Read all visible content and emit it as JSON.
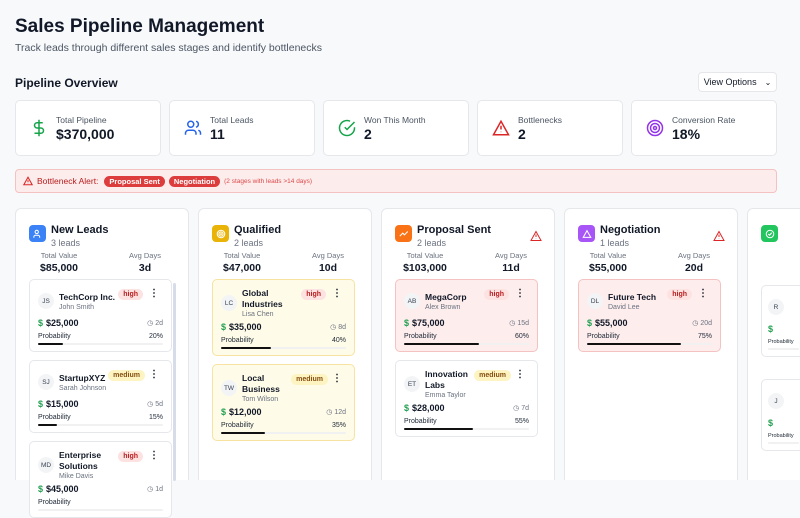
{
  "header": {
    "title": "Sales Pipeline Management",
    "subtitle": "Track leads through different sales stages and identify bottlenecks"
  },
  "overview": {
    "title": "Pipeline Overview",
    "view_options": "View Options"
  },
  "stats": [
    {
      "label": "Total Pipeline",
      "value": "$370,000",
      "icon": "dollar-icon",
      "color": "#16a34a"
    },
    {
      "label": "Total Leads",
      "value": "11",
      "icon": "users-icon",
      "color": "#2563eb"
    },
    {
      "label": "Won This Month",
      "value": "2",
      "icon": "check-circle-icon",
      "color": "#16a34a"
    },
    {
      "label": "Bottlenecks",
      "value": "2",
      "icon": "alert-triangle-icon",
      "color": "#dc2626"
    },
    {
      "label": "Conversion Rate",
      "value": "18%",
      "icon": "target-icon",
      "color": "#9333ea"
    }
  ],
  "alert": {
    "label": "Bottleneck Alert:",
    "stages": [
      "Proposal Sent",
      "Negotiation"
    ],
    "note": "(2 stages with leads >14 days)"
  },
  "labels": {
    "total_value": "Total Value",
    "avg_days": "Avg Days",
    "probability": "Probability"
  },
  "columns": [
    {
      "name": "New Leads",
      "count": "3 leads",
      "total": "$85,000",
      "avg": "3d",
      "color": "#3b82f6",
      "bottleneck": false,
      "leads": [
        {
          "initials": "JS",
          "company": "TechCorp Inc.",
          "contact": "John Smith",
          "priority": "high",
          "value": "$25,000",
          "days": "2d",
          "prob": "20%",
          "p": 20
        },
        {
          "initials": "SJ",
          "company": "StartupXYZ",
          "contact": "Sarah Johnson",
          "priority": "medium",
          "value": "$15,000",
          "days": "5d",
          "prob": "15%",
          "p": 15
        },
        {
          "initials": "MD",
          "company": "Enterprise Solutions",
          "contact": "Mike Davis",
          "priority": "high",
          "value": "$45,000",
          "days": "1d",
          "prob": "",
          "p": 0
        }
      ]
    },
    {
      "name": "Qualified",
      "count": "2 leads",
      "total": "$47,000",
      "avg": "10d",
      "color": "#eab308",
      "bottleneck": false,
      "leads": [
        {
          "initials": "LC",
          "company": "Global Industries",
          "contact": "Lisa Chen",
          "priority": "high",
          "value": "$35,000",
          "days": "8d",
          "prob": "40%",
          "p": 40
        },
        {
          "initials": "TW",
          "company": "Local Business",
          "contact": "Tom Wilson",
          "priority": "medium",
          "value": "$12,000",
          "days": "12d",
          "prob": "35%",
          "p": 35
        }
      ]
    },
    {
      "name": "Proposal Sent",
      "count": "2 leads",
      "total": "$103,000",
      "avg": "11d",
      "color": "#f97316",
      "bottleneck": true,
      "leads": [
        {
          "initials": "AB",
          "company": "MegaCorp",
          "contact": "Alex Brown",
          "priority": "high",
          "value": "$75,000",
          "days": "15d",
          "prob": "60%",
          "p": 60
        },
        {
          "initials": "ET",
          "company": "Innovation Labs",
          "contact": "Emma Taylor",
          "priority": "medium",
          "value": "$28,000",
          "days": "7d",
          "prob": "55%",
          "p": 55
        }
      ]
    },
    {
      "name": "Negotiation",
      "count": "1 leads",
      "total": "$55,000",
      "avg": "20d",
      "color": "#a855f7",
      "bottleneck": true,
      "leads": [
        {
          "initials": "DL",
          "company": "Future Tech",
          "contact": "David Lee",
          "priority": "high",
          "value": "$55,000",
          "days": "20d",
          "prob": "75%",
          "p": 75
        }
      ]
    },
    {
      "name": "",
      "count": "",
      "total": "",
      "avg": "",
      "color": "#22c55e",
      "bottleneck": false,
      "leads": [
        {
          "initials": "R",
          "company": "",
          "contact": "",
          "priority": "",
          "value": "",
          "days": "",
          "prob": "",
          "p": 0
        },
        {
          "initials": "J",
          "company": "",
          "contact": "",
          "priority": "",
          "value": "",
          "days": "",
          "prob": "",
          "p": 0
        }
      ]
    }
  ]
}
